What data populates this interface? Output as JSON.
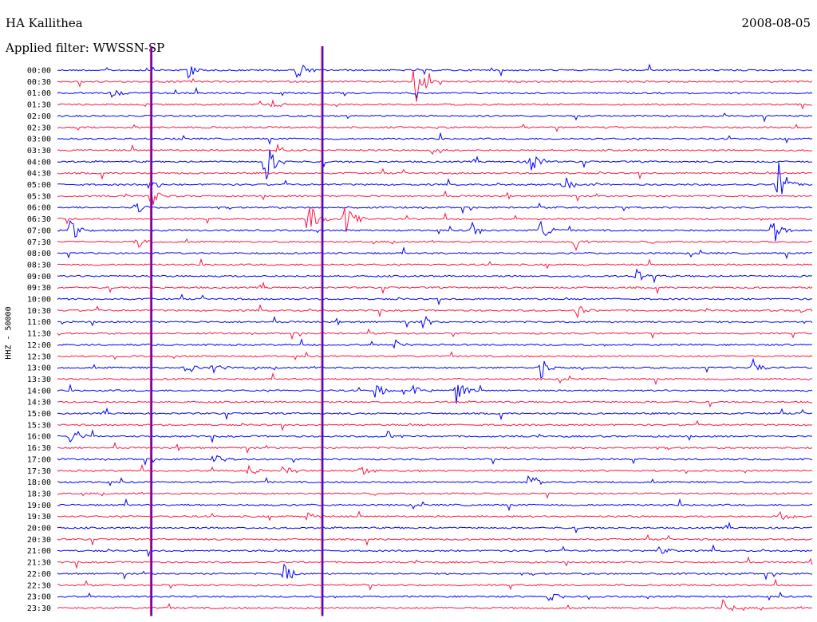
{
  "header": {
    "station": "HA Kallithea",
    "date": "2008-08-05",
    "filter": "Applied filter: WWSSN-SP"
  },
  "chart_data": {
    "type": "line",
    "title": "HA Kallithea",
    "ylabel": "HHZ - 50000",
    "time_labels": [
      "00:00",
      "00:30",
      "01:00",
      "01:30",
      "02:00",
      "02:30",
      "03:00",
      "03:30",
      "04:00",
      "04:30",
      "05:00",
      "05:30",
      "06:00",
      "06:30",
      "07:00",
      "07:30",
      "08:00",
      "08:30",
      "09:00",
      "09:30",
      "10:00",
      "10:30",
      "11:00",
      "11:30",
      "12:00",
      "12:30",
      "13:00",
      "13:30",
      "14:00",
      "14:30",
      "15:00",
      "15:30",
      "16:00",
      "16:30",
      "17:00",
      "17:30",
      "18:00",
      "18:30",
      "19:00",
      "19:30",
      "20:00",
      "20:30",
      "21:00",
      "21:30",
      "22:00",
      "22:30",
      "23:00",
      "23:30"
    ],
    "series_colors": [
      "#0000ff",
      "#ff1744"
    ],
    "trace_minutes": 30,
    "events": [
      {
        "trace": 0,
        "minute": 5.2,
        "amp": 12
      },
      {
        "trace": 0,
        "minute": 9.5,
        "amp": 18
      },
      {
        "trace": 1,
        "minute": 14.2,
        "amp": 40
      },
      {
        "trace": 2,
        "minute": 2.1,
        "amp": 8
      },
      {
        "trace": 3,
        "minute": 8.5,
        "amp": 9
      },
      {
        "trace": 7,
        "minute": 8.7,
        "amp": 10
      },
      {
        "trace": 7,
        "minute": 14.9,
        "amp": 8
      },
      {
        "trace": 8,
        "minute": 8.2,
        "amp": 36
      },
      {
        "trace": 8,
        "minute": 18.7,
        "amp": 22
      },
      {
        "trace": 10,
        "minute": 3.6,
        "amp": 14
      },
      {
        "trace": 10,
        "minute": 20.1,
        "amp": 12
      },
      {
        "trace": 10,
        "minute": 28.6,
        "amp": 36
      },
      {
        "trace": 11,
        "minute": 3.7,
        "amp": 16
      },
      {
        "trace": 12,
        "minute": 3.1,
        "amp": 10
      },
      {
        "trace": 13,
        "minute": 9.9,
        "amp": 30
      },
      {
        "trace": 13,
        "minute": 11.3,
        "amp": 40
      },
      {
        "trace": 14,
        "minute": 0.5,
        "amp": 16
      },
      {
        "trace": 14,
        "minute": 16.4,
        "amp": 14
      },
      {
        "trace": 14,
        "minute": 19.2,
        "amp": 18
      },
      {
        "trace": 14,
        "minute": 28.4,
        "amp": 22
      },
      {
        "trace": 15,
        "minute": 3.1,
        "amp": 14
      },
      {
        "trace": 15,
        "minute": 20.5,
        "amp": 16
      },
      {
        "trace": 18,
        "minute": 23.0,
        "amp": 10
      },
      {
        "trace": 21,
        "minute": 20.6,
        "amp": 12
      },
      {
        "trace": 21,
        "minute": 29.5,
        "amp": 10
      },
      {
        "trace": 22,
        "minute": 14.5,
        "amp": 10
      },
      {
        "trace": 24,
        "minute": 13.4,
        "amp": 8
      },
      {
        "trace": 26,
        "minute": 5.1,
        "amp": 10
      },
      {
        "trace": 26,
        "minute": 6.1,
        "amp": 10
      },
      {
        "trace": 26,
        "minute": 19.2,
        "amp": 14
      },
      {
        "trace": 26,
        "minute": 27.6,
        "amp": 18
      },
      {
        "trace": 28,
        "minute": 12.6,
        "amp": 12
      },
      {
        "trace": 28,
        "minute": 14.1,
        "amp": 10
      },
      {
        "trace": 28,
        "minute": 15.8,
        "amp": 24
      },
      {
        "trace": 32,
        "minute": 0.5,
        "amp": 16
      },
      {
        "trace": 32,
        "minute": 13.1,
        "amp": 8
      },
      {
        "trace": 34,
        "minute": 6.1,
        "amp": 10
      },
      {
        "trace": 35,
        "minute": 7.6,
        "amp": 8
      },
      {
        "trace": 35,
        "minute": 9.0,
        "amp": 10
      },
      {
        "trace": 35,
        "minute": 12.0,
        "amp": 10
      },
      {
        "trace": 36,
        "minute": 18.7,
        "amp": 18
      },
      {
        "trace": 39,
        "minute": 9.9,
        "amp": 8
      },
      {
        "trace": 39,
        "minute": 28.7,
        "amp": 10
      },
      {
        "trace": 42,
        "minute": 23.9,
        "amp": 10
      },
      {
        "trace": 44,
        "minute": 9.0,
        "amp": 14
      },
      {
        "trace": 46,
        "minute": 19.5,
        "amp": 10
      },
      {
        "trace": 47,
        "minute": 26.4,
        "amp": 12
      }
    ],
    "spikes": [
      {
        "minute": 3.7,
        "from": 0,
        "to": 47
      },
      {
        "minute": 10.5,
        "from": 0,
        "to": 47
      }
    ]
  }
}
